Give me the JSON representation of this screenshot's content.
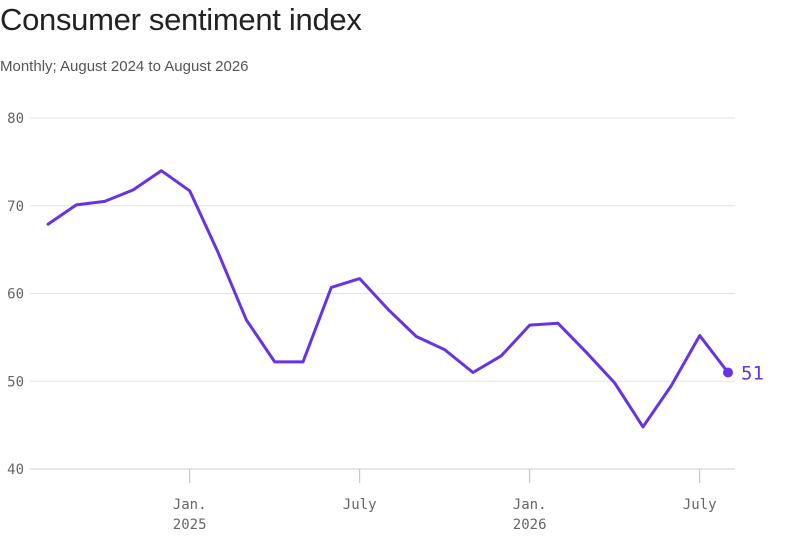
{
  "title": "Consumer sentiment index",
  "subtitle": "Monthly; August 2024 to August 2026",
  "chart_data": {
    "type": "line",
    "x_start": "2024-08",
    "x_end": "2026-08",
    "ylim": [
      40,
      80
    ],
    "yticks": [
      40,
      50,
      60,
      70,
      80
    ],
    "xticks": [
      {
        "date": "2025-01",
        "label": "Jan.",
        "sublabel": "2025"
      },
      {
        "date": "2025-07",
        "label": "July",
        "sublabel": ""
      },
      {
        "date": "2026-01",
        "label": "Jan.",
        "sublabel": "2026"
      },
      {
        "date": "2026-07",
        "label": "July",
        "sublabel": ""
      }
    ],
    "grid": true,
    "color": "#6633e6",
    "series": [
      {
        "x": [
          "2024-08",
          "2024-09",
          "2024-10",
          "2024-11",
          "2024-12",
          "2025-01",
          "2025-02",
          "2025-03",
          "2025-04",
          "2025-05",
          "2025-06",
          "2025-07",
          "2025-08",
          "2025-09",
          "2025-10",
          "2025-11",
          "2025-12",
          "2026-01",
          "2026-02",
          "2026-03",
          "2026-04",
          "2026-05",
          "2026-06",
          "2026-07",
          "2026-08"
        ],
        "values": [
          67.9,
          70.1,
          70.5,
          71.8,
          74.0,
          71.7,
          64.7,
          57.0,
          52.2,
          52.2,
          60.7,
          61.7,
          58.2,
          55.1,
          53.6,
          51.0,
          52.9,
          56.4,
          56.6,
          53.3,
          49.8,
          44.8,
          49.5,
          55.2,
          51.0
        ]
      }
    ],
    "end_label": "51"
  }
}
